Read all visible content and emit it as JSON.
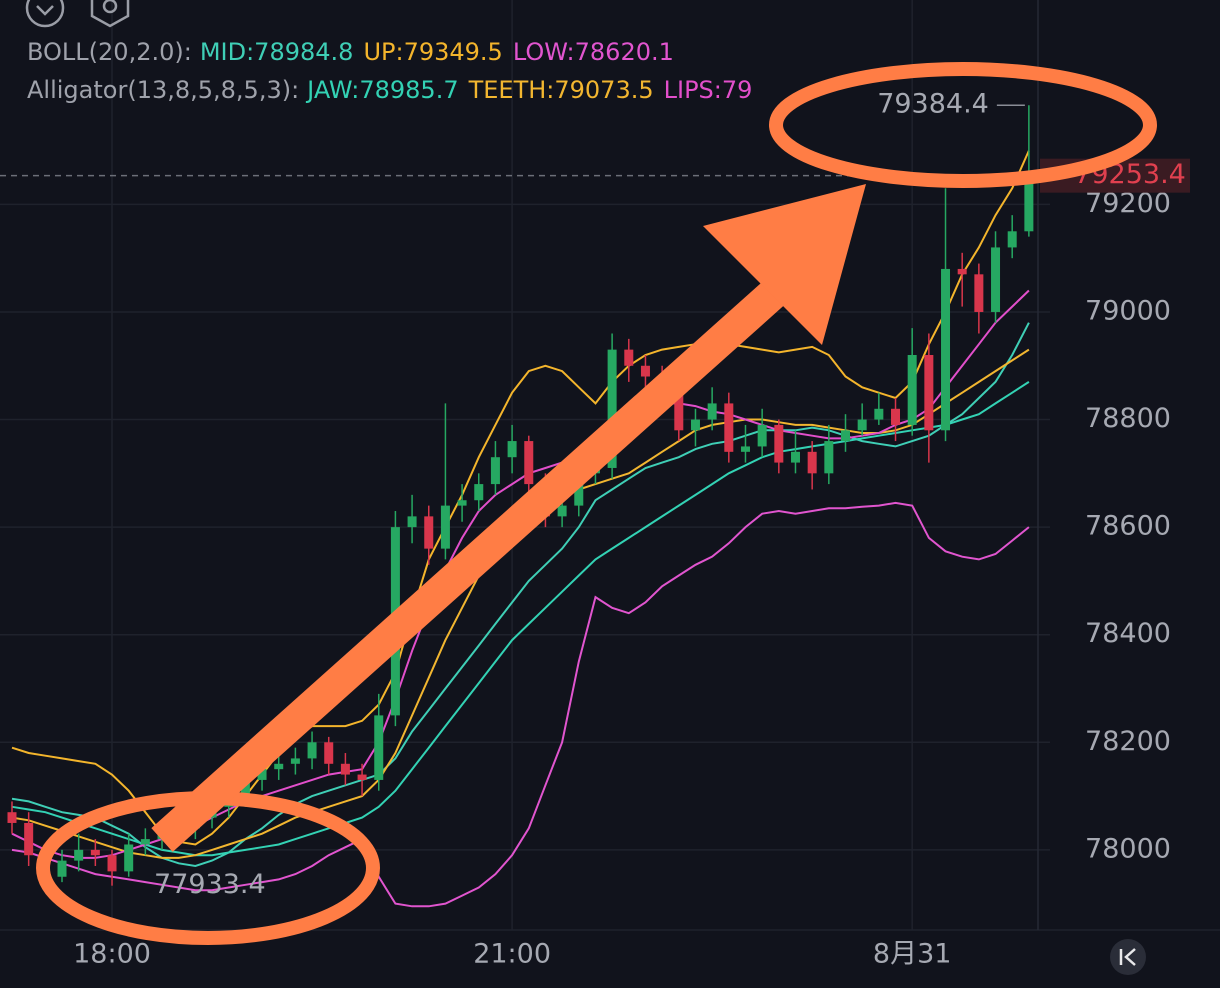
{
  "chart_data": {
    "type": "candlestick",
    "categories": [
      null,
      null,
      null,
      null,
      null,
      null,
      "18:00",
      null,
      null,
      null,
      null,
      null,
      null,
      null,
      null,
      null,
      null,
      null,
      null,
      null,
      null,
      null,
      null,
      null,
      null,
      null,
      null,
      null,
      null,
      null,
      "21:00",
      null,
      null,
      null,
      null,
      null,
      null,
      null,
      null,
      null,
      null,
      null,
      null,
      null,
      null,
      null,
      null,
      null,
      null,
      null,
      null,
      null,
      null,
      null,
      "8月31",
      null,
      null,
      null,
      null,
      null,
      null,
      null
    ],
    "open": [
      78070,
      78050,
      77990,
      77950,
      77980,
      78000,
      77990,
      77960,
      78010,
      78020,
      78030,
      78040,
      78060,
      78080,
      78100,
      78130,
      78150,
      78160,
      78170,
      78200,
      78160,
      78140,
      78130,
      78250,
      78600,
      78620,
      78560,
      78640,
      78650,
      78680,
      78730,
      78760,
      78680,
      78620,
      78640,
      78700,
      78710,
      78930,
      78900,
      78880,
      78850,
      78780,
      78800,
      78830,
      78740,
      78750,
      78790,
      78720,
      78740,
      78700,
      78760,
      78780,
      78800,
      78820,
      78790,
      78920,
      78780,
      79080,
      79070,
      79000,
      79120,
      79150
    ],
    "high": [
      78090,
      78070,
      78010,
      78000,
      78030,
      78020,
      78000,
      78030,
      78040,
      78050,
      78060,
      78080,
      78100,
      78120,
      78150,
      78170,
      78190,
      78190,
      78220,
      78210,
      78180,
      78160,
      78290,
      78630,
      78660,
      78640,
      78830,
      78680,
      78700,
      78760,
      78790,
      78770,
      78700,
      78670,
      78720,
      78740,
      78960,
      78950,
      78920,
      78900,
      78870,
      78820,
      78860,
      78850,
      78790,
      78820,
      78800,
      78780,
      78760,
      78790,
      78810,
      78830,
      78850,
      78840,
      78970,
      78960,
      79230,
      79110,
      79090,
      79150,
      79180,
      79384.4
    ],
    "low": [
      78030,
      77970,
      77940,
      77940,
      77960,
      77970,
      77933.4,
      77950,
      77990,
      78000,
      78010,
      78020,
      78040,
      78060,
      78080,
      78110,
      78130,
      78140,
      78150,
      78140,
      78120,
      78100,
      78110,
      78230,
      78570,
      78530,
      78540,
      78610,
      78630,
      78660,
      78700,
      78660,
      78600,
      78600,
      78620,
      78680,
      78690,
      78870,
      78860,
      78830,
      78760,
      78750,
      78780,
      78720,
      78720,
      78730,
      78700,
      78700,
      78670,
      78680,
      78740,
      78770,
      78790,
      78760,
      78770,
      78720,
      78760,
      79010,
      78960,
      78980,
      79100,
      79140
    ],
    "close": [
      78050,
      77990,
      77950,
      77980,
      78000,
      77990,
      77960,
      78010,
      78020,
      78030,
      78040,
      78060,
      78080,
      78100,
      78130,
      78150,
      78160,
      78170,
      78200,
      78160,
      78140,
      78130,
      78250,
      78600,
      78620,
      78560,
      78640,
      78650,
      78680,
      78730,
      78760,
      78680,
      78620,
      78640,
      78700,
      78710,
      78930,
      78900,
      78880,
      78850,
      78780,
      78800,
      78830,
      78740,
      78750,
      78790,
      78720,
      78740,
      78700,
      78760,
      78780,
      78800,
      78820,
      78790,
      78920,
      78780,
      79080,
      79070,
      79000,
      79120,
      79150,
      79253.4
    ],
    "up_color": "#26a862",
    "down_color": "#d9364c",
    "ylim": [
      77851,
      79580
    ],
    "yticks": [
      78000,
      78200,
      78400,
      78600,
      78800,
      79000,
      79200
    ],
    "grid": true,
    "indicators": [
      {
        "label": "BOLL(20,2.0):",
        "series": [
          {
            "name": "MID:78984.8",
            "color": "#3fcfb6",
            "values": [
              78095,
              78090,
              78080,
              78070,
              78065,
              78060,
              78045,
              78030,
              78005,
              77985,
              77975,
              77970,
              77980,
              77995,
              78020,
              78040,
              78065,
              78085,
              78100,
              78110,
              78120,
              78130,
              78140,
              78170,
              78220,
              78260,
              78300,
              78340,
              78380,
              78420,
              78460,
              78500,
              78530,
              78560,
              78600,
              78650,
              78670,
              78690,
              78710,
              78720,
              78730,
              78745,
              78755,
              78760,
              78770,
              78780,
              78780,
              78780,
              78785,
              78780,
              78770,
              78760,
              78755,
              78750,
              78760,
              78770,
              78790,
              78810,
              78840,
              78870,
              78920,
              78980
            ]
          },
          {
            "name": "UP:79349.5",
            "color": "#f4b52c",
            "values": [
              78190,
              78180,
              78175,
              78170,
              78165,
              78160,
              78140,
              78110,
              78070,
              78030,
              78015,
              78010,
              78030,
              78060,
              78100,
              78140,
              78180,
              78210,
              78230,
              78230,
              78230,
              78240,
              78270,
              78330,
              78440,
              78540,
              78600,
              78660,
              78730,
              78790,
              78850,
              78890,
              78900,
              78890,
              78860,
              78830,
              78870,
              78900,
              78920,
              78930,
              78935,
              78940,
              78940,
              78940,
              78935,
              78930,
              78925,
              78930,
              78935,
              78920,
              78880,
              78860,
              78850,
              78840,
              78870,
              78940,
              79000,
              79070,
              79120,
              79180,
              79230,
              79300
            ]
          },
          {
            "name": "LOW:78620.1",
            "color": "#e155cf",
            "values": [
              78000,
              77995,
              77985,
              77975,
              77965,
              77955,
              77950,
              77945,
              77940,
              77935,
              77930,
              77925,
              77925,
              77930,
              77935,
              77940,
              77945,
              77955,
              77970,
              77990,
              78005,
              78020,
              77950,
              77900,
              77895,
              77895,
              77900,
              77915,
              77930,
              77955,
              77990,
              78040,
              78120,
              78200,
              78350,
              78470,
              78450,
              78440,
              78460,
              78490,
              78510,
              78530,
              78545,
              78570,
              78600,
              78625,
              78630,
              78625,
              78630,
              78635,
              78635,
              78638,
              78640,
              78645,
              78640,
              78580,
              78555,
              78545,
              78540,
              78550,
              78575,
              78600
            ]
          }
        ]
      },
      {
        "label": "Alligator(13,8,5,8,5,3):",
        "series": [
          {
            "name": "JAW:78985.7",
            "color": "#33d2b4",
            "values": [
              78080,
              78075,
              78070,
              78060,
              78050,
              78040,
              78030,
              78020,
              78010,
              78000,
              77995,
              77990,
              77990,
              77995,
              78000,
              78005,
              78010,
              78020,
              78030,
              78040,
              78050,
              78060,
              78080,
              78110,
              78150,
              78190,
              78230,
              78270,
              78310,
              78350,
              78390,
              78420,
              78450,
              78480,
              78510,
              78540,
              78560,
              78580,
              78600,
              78620,
              78640,
              78660,
              78680,
              78700,
              78715,
              78730,
              78740,
              78745,
              78750,
              78755,
              78760,
              78765,
              78770,
              78775,
              78780,
              78785,
              78790,
              78800,
              78810,
              78830,
              78850,
              78870
            ]
          },
          {
            "name": "TEETH:79073.5",
            "color": "#f2b630",
            "values": [
              78060,
              78055,
              78045,
              78035,
              78025,
              78015,
              78005,
              77995,
              77990,
              77985,
              77985,
              77990,
              78000,
              78010,
              78020,
              78030,
              78045,
              78060,
              78070,
              78080,
              78090,
              78100,
              78130,
              78180,
              78250,
              78320,
              78390,
              78450,
              78510,
              78560,
              78600,
              78630,
              78650,
              78660,
              78670,
              78680,
              78690,
              78700,
              78720,
              78740,
              78760,
              78780,
              78790,
              78795,
              78800,
              78800,
              78795,
              78790,
              78790,
              78785,
              78780,
              78775,
              78775,
              78780,
              78790,
              78810,
              78830,
              78850,
              78870,
              78890,
              78910,
              78930
            ]
          },
          {
            "name": "LIPS:79",
            "color": "#e24fcb",
            "values": [
              78030,
              78015,
              78000,
              77990,
              77985,
              77985,
              77990,
              78000,
              78010,
              78020,
              78030,
              78045,
              78060,
              78075,
              78090,
              78100,
              78110,
              78120,
              78130,
              78140,
              78145,
              78150,
              78200,
              78280,
              78370,
              78450,
              78520,
              78580,
              78630,
              78660,
              78680,
              78700,
              78710,
              78720,
              78740,
              78760,
              78790,
              78810,
              78820,
              78830,
              78830,
              78825,
              78815,
              78810,
              78800,
              78790,
              78780,
              78775,
              78770,
              78765,
              78765,
              78770,
              78775,
              78790,
              78800,
              78820,
              78860,
              78900,
              78940,
              78980,
              79010,
              79040
            ]
          }
        ]
      }
    ]
  }
}
